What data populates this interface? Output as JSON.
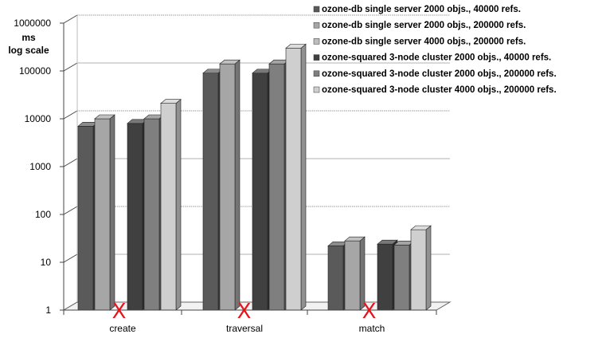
{
  "chart_data": {
    "type": "bar",
    "y_title": [
      "ms",
      "log scale"
    ],
    "y_scale": "log",
    "ylim": [
      1,
      1000000
    ],
    "y_ticks": [
      "1",
      "10",
      "100",
      "1000",
      "10000",
      "100000",
      "1000000"
    ],
    "grid": true,
    "legend_position": "top-right",
    "categories": [
      "create",
      "traversal",
      "match"
    ],
    "missing_marker": "X",
    "missing_marker_color": "#e8141b",
    "series": [
      {
        "name": "ozone-db single server 2000 objs., 40000  refs.",
        "color": "#5a5a5a",
        "values": [
          7000,
          90000,
          22
        ]
      },
      {
        "name": "ozone-db single server  2000 objs., 200000 refs.",
        "color": "#a6a6a6",
        "values": [
          10000,
          140000,
          28
        ]
      },
      {
        "name": "ozone-db single server  4000 objs., 200000 refs.",
        "color": "#bdbdbd",
        "values": [
          null,
          null,
          null
        ]
      },
      {
        "name": "ozone-squared  3-node cluster 2000 objs., 40000  refs.",
        "color": "#404040",
        "values": [
          8000,
          90000,
          24
        ]
      },
      {
        "name": "ozone-squared  3-node cluster 2000 objs., 200000 refs.",
        "color": "#7f7f7f",
        "values": [
          10000,
          140000,
          23
        ]
      },
      {
        "name": "ozone-squared  3-node cluster 4000 objs., 200000 refs.",
        "color": "#cfcfcf",
        "values": [
          21000,
          300000,
          48
        ]
      }
    ]
  }
}
